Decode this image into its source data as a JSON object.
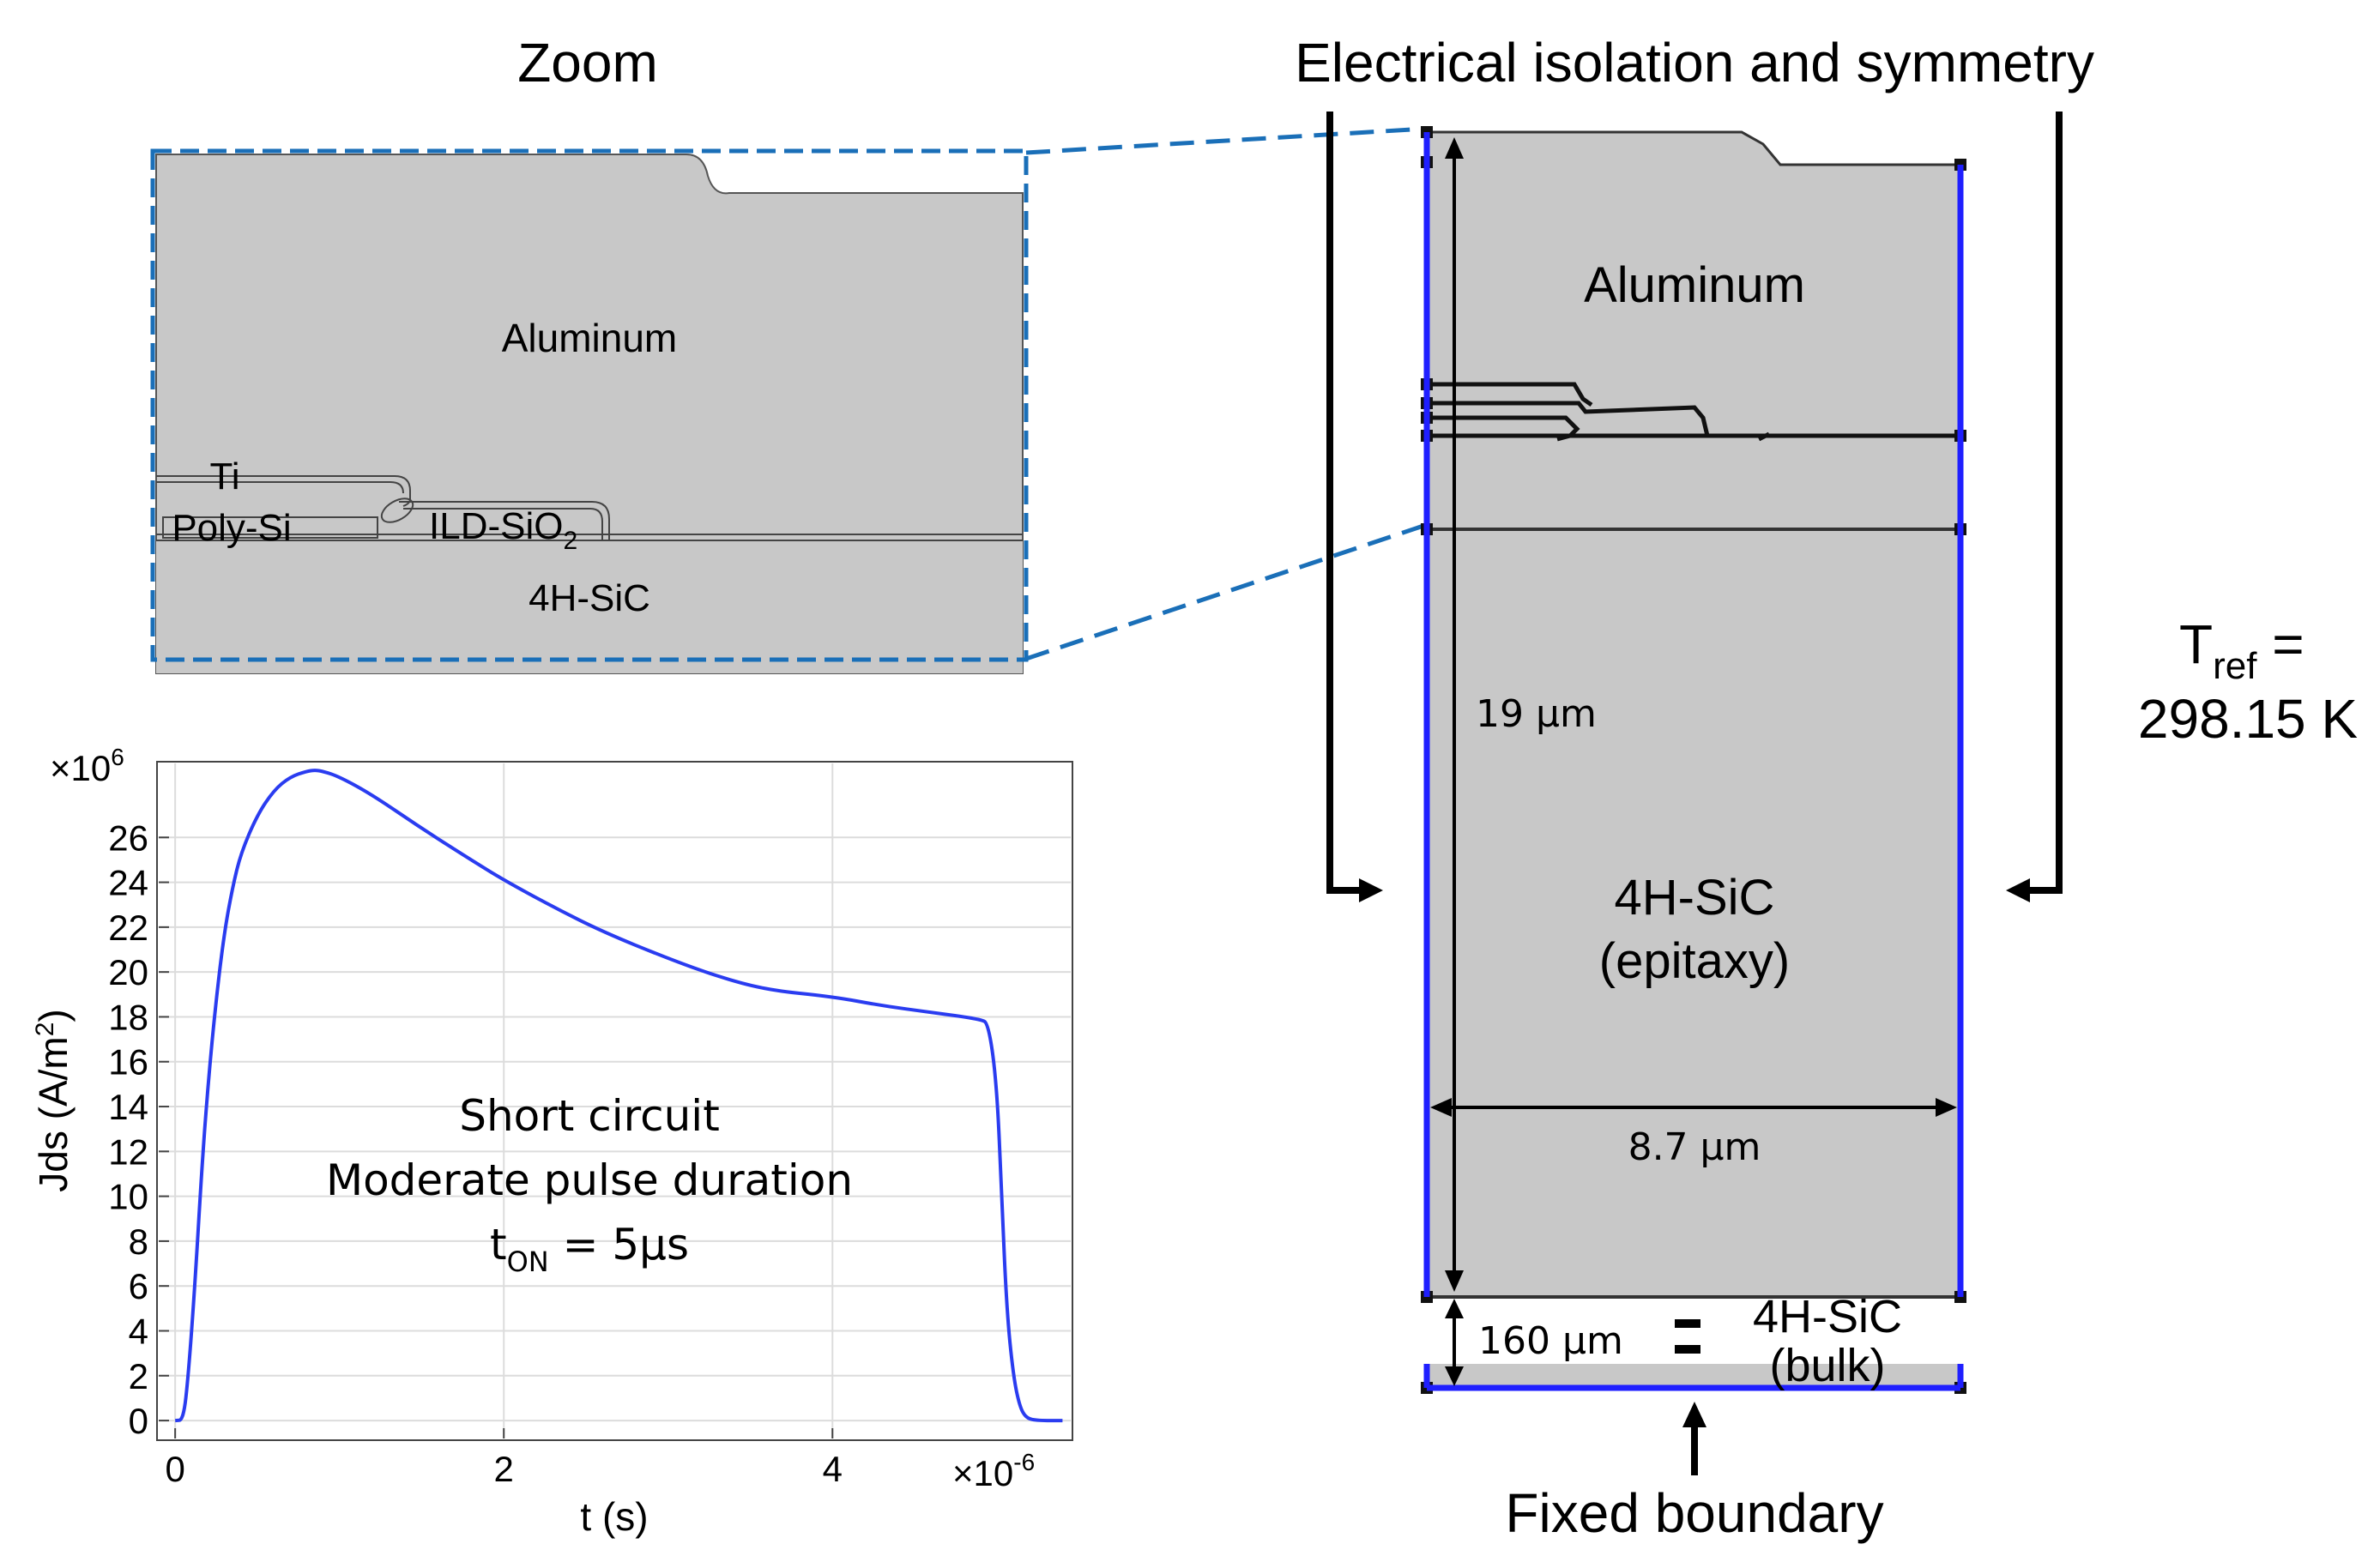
{
  "zoom_panel": {
    "title": "Zoom",
    "labels": {
      "aluminum": "Aluminum",
      "ti": "Ti",
      "polysi": "Poly-Si",
      "ild_base": "ILD-SiO",
      "ild_sub": "2",
      "sic": "4H-SiC"
    }
  },
  "main_panel": {
    "title": "Electrical isolation and symmetry",
    "aluminum": "Aluminum",
    "sic_line1": "4H-SiC",
    "sic_line2": "(epitaxy)",
    "dim_height": "19 µm",
    "dim_width": "8.7 µm",
    "dim_bulk": "160 µm",
    "bulk_line1": "4H-SiC",
    "bulk_line2": "(bulk)",
    "fixed_boundary": "Fixed boundary",
    "tref_base": "T",
    "tref_sub": "ref",
    "tref_eq": " =",
    "tref_value": "298.15 K",
    "colors": {
      "boundary": "#1f1fff",
      "domain": "#c8c8c8",
      "zoom_frame": "#1a6fb8"
    }
  },
  "chart_data": {
    "type": "line",
    "xlabel": "t (s)",
    "ylabel_base": "Jds (A/m",
    "ylabel_sup": "2",
    "ylabel_close": ")",
    "x_multiplier": "×10",
    "x_exp": "-6",
    "y_multiplier": "×10",
    "y_exp": "6",
    "xlim": [
      -1e-07,
      5.45e-06
    ],
    "ylim": [
      -800000.0,
      29300000.0
    ],
    "x_ticks": [
      0,
      2e-06,
      4e-06
    ],
    "x_tick_labels": [
      "0",
      "2",
      "4"
    ],
    "y_ticks": [
      0,
      2000000.0,
      4000000.0,
      6000000.0,
      8000000.0,
      10000000.0,
      12000000.0,
      14000000.0,
      16000000.0,
      18000000.0,
      20000000.0,
      22000000.0,
      24000000.0,
      26000000.0
    ],
    "y_tick_labels": [
      "0",
      "2",
      "4",
      "6",
      "8",
      "10",
      "12",
      "14",
      "16",
      "18",
      "20",
      "22",
      "24",
      "26"
    ],
    "grid": true,
    "annotation_line1": "Short circuit",
    "annotation_line2": "Moderate pulse duration",
    "annotation_line3_base": "t",
    "annotation_line3_sub": "ON",
    "annotation_line3_rest": " = 5µs",
    "series": [
      {
        "color": "#2a3cf0",
        "x": [
          0,
          5e-08,
          8e-08,
          1.2e-07,
          1.6e-07,
          2e-07,
          2.5e-07,
          3e-07,
          3.5e-07,
          4e-07,
          5e-07,
          6e-07,
          7e-07,
          8e-07,
          8.5e-07,
          9e-07,
          1e-06,
          1.2e-06,
          1.5e-06,
          1.8e-06,
          2e-06,
          2.3e-06,
          2.6e-06,
          3e-06,
          3.3e-06,
          3.6e-06,
          4e-06,
          4.3e-06,
          4.6e-06,
          4.9e-06,
          4.95e-06,
          5e-06,
          5.03e-06,
          5.06e-06,
          5.1e-06,
          5.14e-06,
          5.18e-06,
          5.25e-06,
          5.4e-06
        ],
        "y": [
          0,
          20000.0,
          2000000.0,
          6000000.0,
          11000000.0,
          15000000.0,
          18800000.0,
          21800000.0,
          23800000.0,
          25300000.0,
          27000000.0,
          28100000.0,
          28700000.0,
          28950000.0,
          29000000.0,
          28950000.0,
          28700000.0,
          27900000.0,
          26400000.0,
          25000000.0,
          24100000.0,
          22900000.0,
          21800000.0,
          20600000.0,
          19800000.0,
          19200000.0,
          18900000.0,
          18500000.0,
          18200000.0,
          17900000.0,
          17700000.0,
          15000000.0,
          10000000.0,
          5000000.0,
          2000000.0,
          600000.0,
          100000.0,
          0,
          0
        ]
      }
    ]
  }
}
